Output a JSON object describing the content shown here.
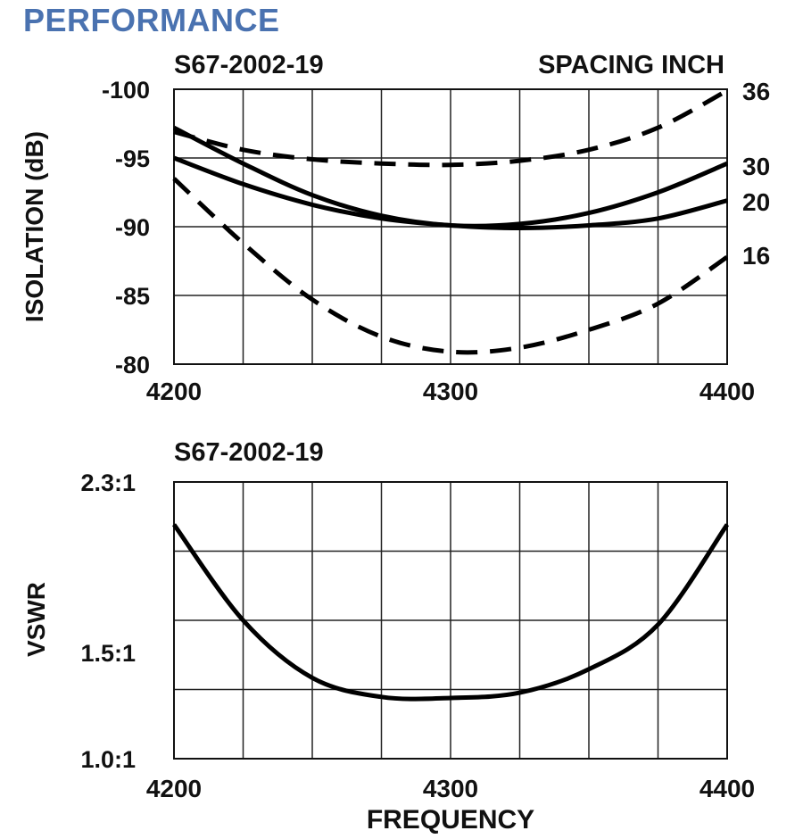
{
  "page": {
    "title": "PERFORMANCE",
    "title_color": "#4a72b0"
  },
  "chart_data": [
    {
      "type": "line",
      "title": "S67-2002-19",
      "legend_title": "SPACING INCH",
      "ylabel": "ISOLATION (dB)",
      "xlabel": "",
      "xlim": [
        4200,
        4400
      ],
      "ylim": [
        -100,
        -80
      ],
      "y_inverted": true,
      "x_ticks": [
        4200,
        4300,
        4400
      ],
      "y_ticks": [
        -100,
        -95,
        -90,
        -85,
        -80
      ],
      "grid": true,
      "x": [
        4200,
        4225,
        4250,
        4275,
        4300,
        4325,
        4350,
        4375,
        4400
      ],
      "series": [
        {
          "name": "36",
          "style": "dashed",
          "values": [
            -96.9,
            -95.6,
            -94.9,
            -94.6,
            -94.5,
            -94.8,
            -95.6,
            -97.2,
            -99.9
          ]
        },
        {
          "name": "30",
          "style": "solid",
          "values": [
            -97.2,
            -94.6,
            -92.3,
            -90.8,
            -90.1,
            -90.2,
            -91.0,
            -92.5,
            -94.6
          ]
        },
        {
          "name": "20",
          "style": "solid",
          "values": [
            -95.0,
            -93.1,
            -91.6,
            -90.6,
            -90.1,
            -89.9,
            -90.1,
            -90.6,
            -91.9
          ]
        },
        {
          "name": "16",
          "style": "dashed",
          "values": [
            -93.5,
            -88.8,
            -84.7,
            -82.0,
            -80.9,
            -81.2,
            -82.5,
            -84.4,
            -87.8
          ]
        }
      ]
    },
    {
      "type": "line",
      "title": "S67-2002-19",
      "ylabel": "VSWR",
      "xlabel": "FREQUENCY",
      "xlim": [
        4200,
        4400
      ],
      "ylim": [
        1.0,
        2.3
      ],
      "x_ticks": [
        4200,
        4300,
        4400
      ],
      "y_ticks": [
        1.0,
        1.5,
        2.3
      ],
      "y_tick_labels": [
        "1.0:1",
        "1.5:1",
        "2.3:1"
      ],
      "grid": true,
      "x": [
        4200,
        4225,
        4250,
        4275,
        4300,
        4325,
        4350,
        4375,
        4400
      ],
      "series": [
        {
          "values": [
            2.1,
            1.65,
            1.38,
            1.29,
            1.285,
            1.31,
            1.42,
            1.63,
            2.1
          ]
        }
      ]
    }
  ]
}
